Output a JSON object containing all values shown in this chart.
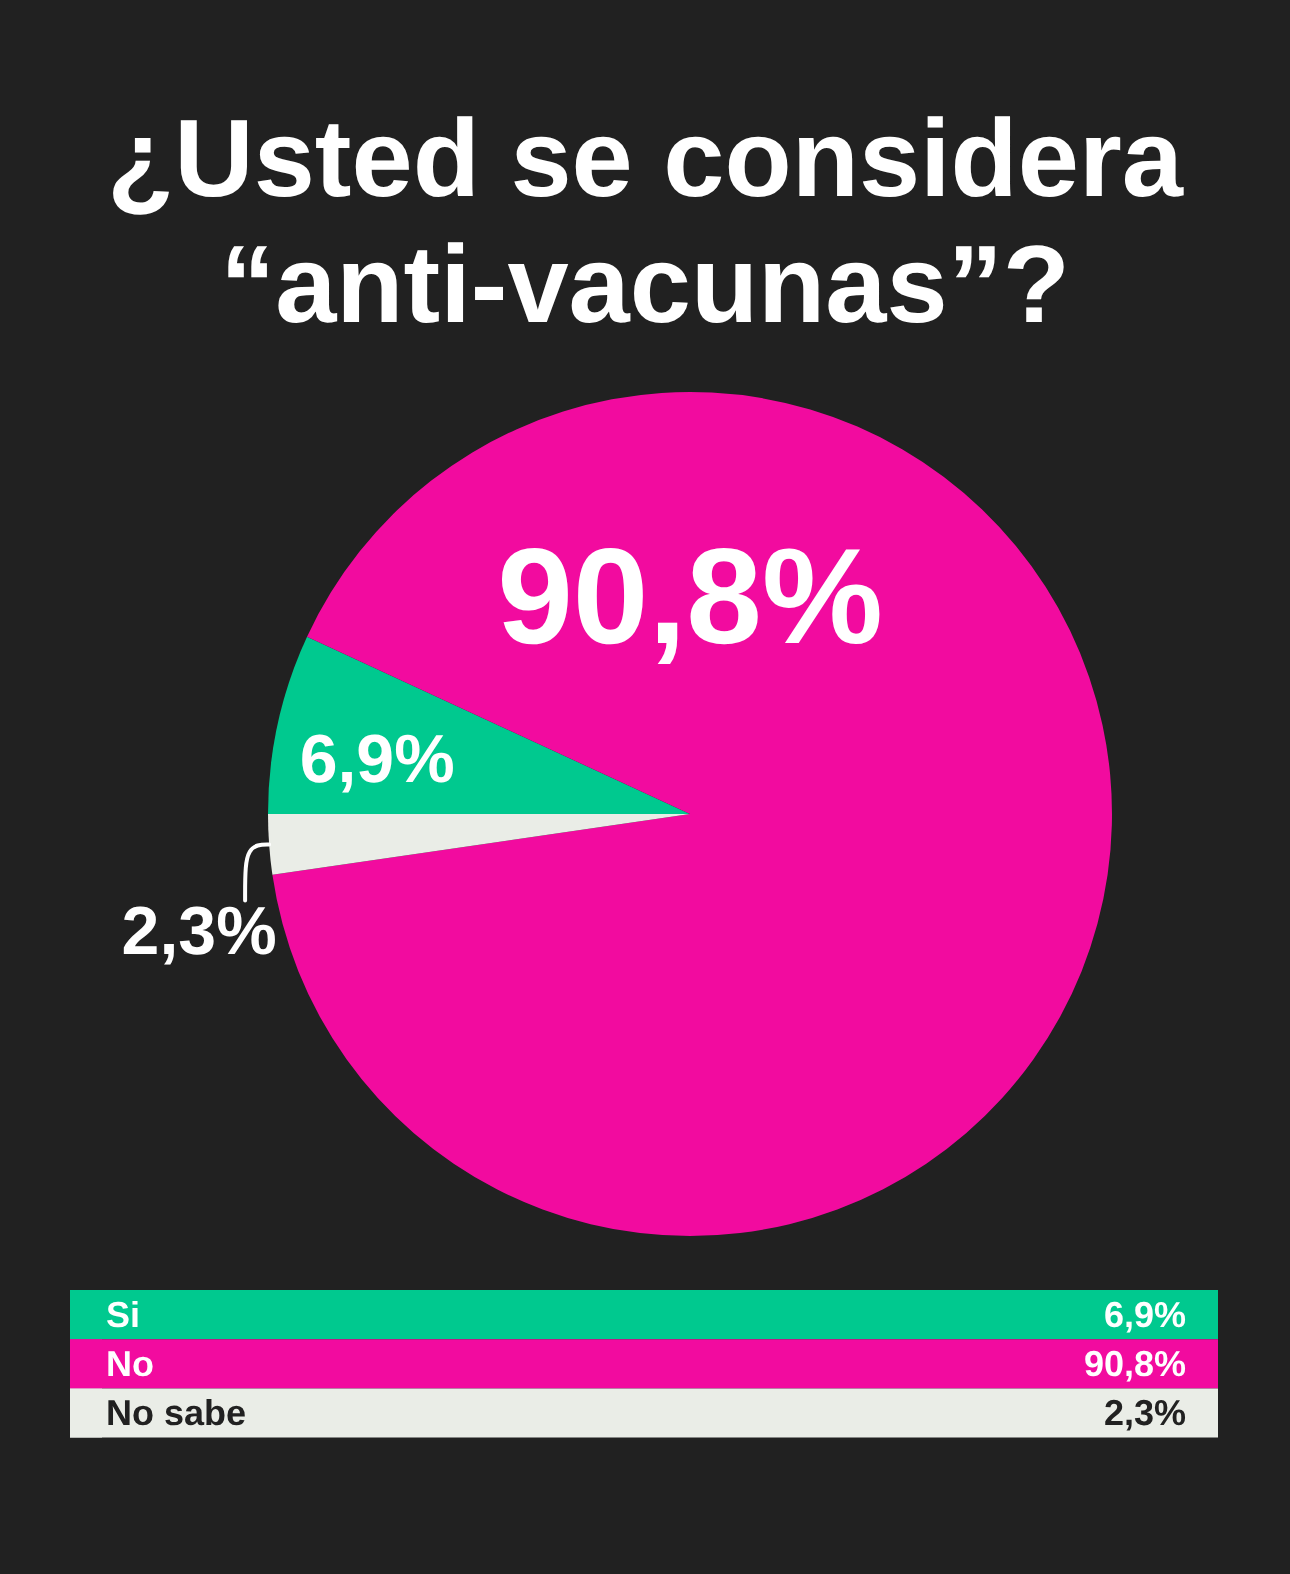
{
  "chart_data": {
    "type": "pie",
    "title": "¿Usted se considera “anti-vacunas”?",
    "categories": [
      "Si",
      "No",
      "No sabe"
    ],
    "values": [
      6.9,
      90.8,
      2.3
    ],
    "colors": [
      "#00c98f",
      "#f20b9f",
      "#eaede7"
    ],
    "value_labels": [
      "6,9%",
      "90,8%",
      "2,3%"
    ],
    "legend": "bottom"
  }
}
